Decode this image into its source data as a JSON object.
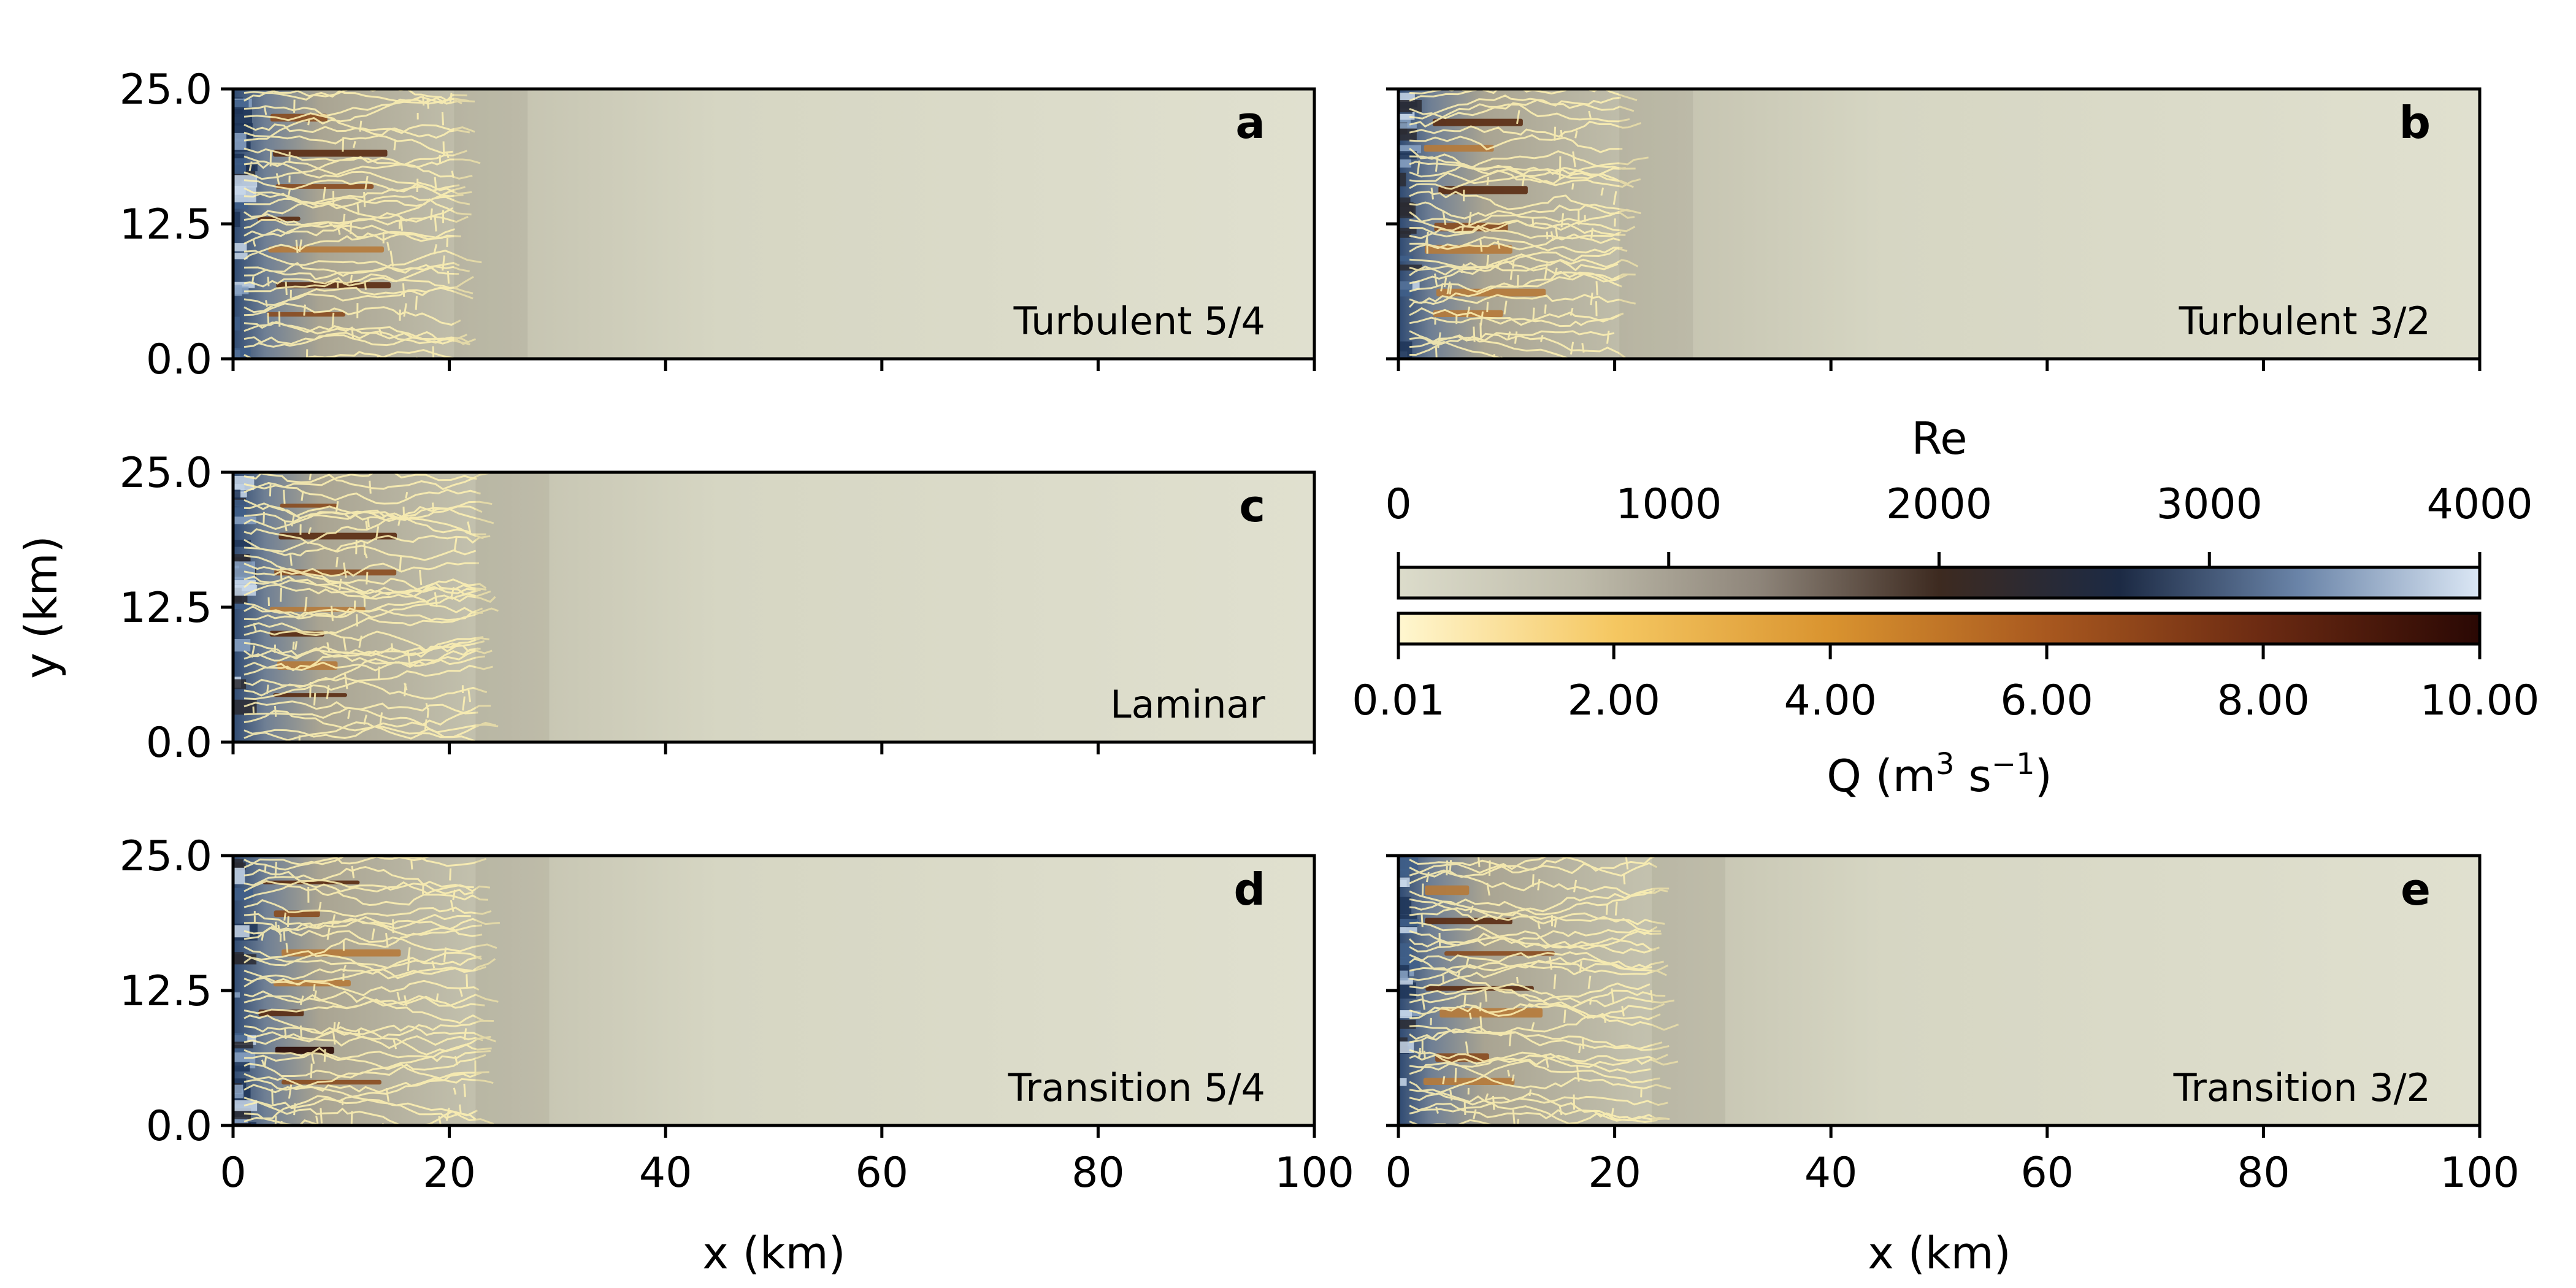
{
  "chart_data": {
    "type": "heatmap",
    "xlabel": "x (km)",
    "ylabel": "y (km)",
    "xlim": [
      0,
      100
    ],
    "ylim": [
      0,
      25
    ],
    "x_ticks": [
      "0",
      "20",
      "40",
      "60",
      "80",
      "100"
    ],
    "y_ticks": [
      "0.0",
      "12.5",
      "25.0"
    ],
    "panels": [
      {
        "letter": "a",
        "title": "Turbulent 5/4",
        "front_km": 21,
        "texture_seed": 11
      },
      {
        "letter": "b",
        "title": "Turbulent 3/2",
        "front_km": 21,
        "texture_seed": 23
      },
      {
        "letter": "c",
        "title": "Laminar",
        "front_km": 23,
        "texture_seed": 37
      },
      {
        "letter": "d",
        "title": "Transition 5/4",
        "front_km": 23,
        "texture_seed": 41
      },
      {
        "letter": "e",
        "title": "Transition 3/2",
        "front_km": 24,
        "texture_seed": 53
      }
    ],
    "colorbars": [
      {
        "name": "Re",
        "label": "Re",
        "range": [
          0,
          4000
        ],
        "ticks": [
          "0",
          "1000",
          "2000",
          "3000",
          "4000"
        ],
        "colors": [
          "#dcdccb",
          "#bfbcab",
          "#8e857a",
          "#3d2a20",
          "#1c2a44",
          "#6a84a8",
          "#dbe7f5"
        ]
      },
      {
        "name": "Q",
        "label": "Q (m",
        "label_sup1": "3",
        "label_mid": " s",
        "label_sup2": "−1",
        "label_end": ")",
        "range": [
          0.01,
          10.0
        ],
        "ticks": [
          "0.01",
          "2.00",
          "4.00",
          "6.00",
          "8.00",
          "10.00"
        ],
        "colors": [
          "#fff7d0",
          "#f5c761",
          "#d9932f",
          "#a8581f",
          "#6b2a12",
          "#2a0804"
        ]
      }
    ]
  }
}
